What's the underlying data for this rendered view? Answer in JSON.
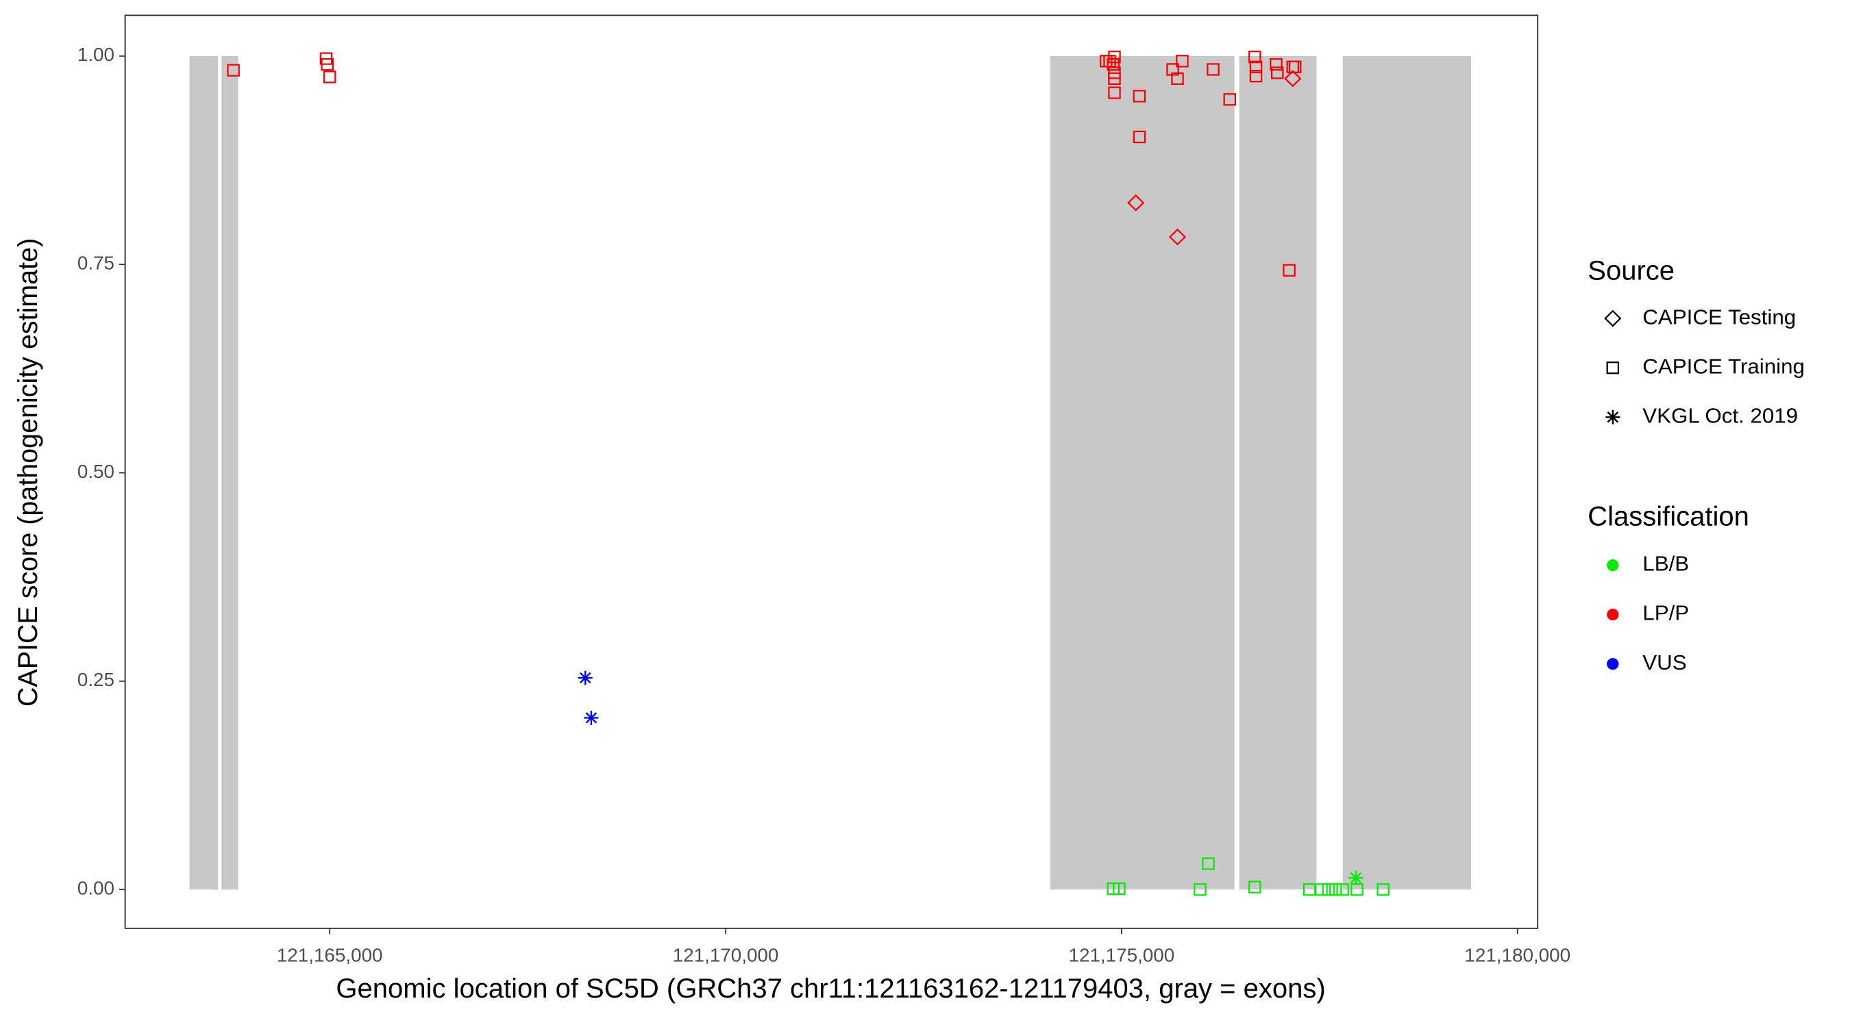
{
  "chart_data": {
    "type": "scatter",
    "xlabel": "Genomic location of SC5D (GRCh37 chr11:121163162-121179403, gray = exons)",
    "ylabel": "CAPICE score (pathogenicity estimate)",
    "xlim": [
      121162417,
      121180255
    ],
    "ylim": [
      -0.0465,
      1.049
    ],
    "xticks": [
      {
        "value": 121165000,
        "label": "121,165,000"
      },
      {
        "value": 121170000,
        "label": "121,170,000"
      },
      {
        "value": 121175000,
        "label": "121,175,000"
      },
      {
        "value": 121180000,
        "label": "121,180,000"
      }
    ],
    "yticks": [
      {
        "value": 0,
        "label": "0.00"
      },
      {
        "value": 0.25,
        "label": "0.25"
      },
      {
        "value": 0.5,
        "label": "0.50"
      },
      {
        "value": 0.75,
        "label": "0.75"
      },
      {
        "value": 1,
        "label": "1.00"
      }
    ],
    "exon_color": "#c8c8c8",
    "exons": [
      [
        121163228,
        121163589
      ],
      [
        121163634,
        121163844
      ],
      [
        121174099,
        121176426
      ],
      [
        121176486,
        121177462
      ],
      [
        121177793,
        121179414
      ]
    ],
    "source_legend": {
      "title": "Source",
      "items": [
        {
          "name": "CAPICE Testing",
          "shape": "diamond"
        },
        {
          "name": "CAPICE Training",
          "shape": "square"
        },
        {
          "name": "VKGL Oct. 2019",
          "shape": "star"
        }
      ]
    },
    "classification_legend": {
      "title": "Classification",
      "items": [
        {
          "name": "LB/B",
          "color": "#00ee00"
        },
        {
          "name": "LP/P",
          "color": "#ff0000"
        },
        {
          "name": "VUS",
          "color": "#0000ff"
        }
      ]
    },
    "groups": [
      {
        "source": 1,
        "classification": 1,
        "x": [
          121163784,
          121164955,
          121164970,
          121165000,
          121174805,
          121174850,
          121174910,
          121174895,
          121174910,
          121174910,
          121174910,
          121175225,
          121175225,
          121175646,
          121175706,
          121175766,
          121176156,
          121176366,
          121176682,
          121176697,
          121176697,
          121176952,
          121176967,
          121177162,
          121177192,
          121177117
        ],
        "y": [
          0.983,
          0.997,
          0.99,
          0.975,
          0.994,
          0.994,
          0.999,
          0.99,
          0.98,
          0.973,
          0.956,
          0.952,
          0.903,
          0.984,
          0.973,
          0.994,
          0.984,
          0.948,
          0.999,
          0.987,
          0.976,
          0.99,
          0.98,
          0.987,
          0.987,
          0.743
        ]
      },
      {
        "source": 0,
        "classification": 1,
        "x": [
          121175180,
          121175706,
          121177162
        ],
        "y": [
          0.824,
          0.783,
          0.973
        ]
      },
      {
        "source": 2,
        "classification": 2,
        "x": [
          121168228,
          121168303
        ],
        "y": [
          0.254,
          0.206
        ]
      },
      {
        "source": 1,
        "classification": 0,
        "x": [
          121174895,
          121174970,
          121175991,
          121176096,
          121176682,
          121177373,
          121177523,
          121177613,
          121177703,
          121177793,
          121177973,
          121178303
        ],
        "y": [
          0.001,
          0.001,
          0,
          0.031,
          0.003,
          0,
          0,
          0,
          0,
          0,
          0,
          0
        ]
      },
      {
        "source": 2,
        "classification": 0,
        "x": [
          121177958
        ],
        "y": [
          0.014
        ]
      }
    ]
  }
}
